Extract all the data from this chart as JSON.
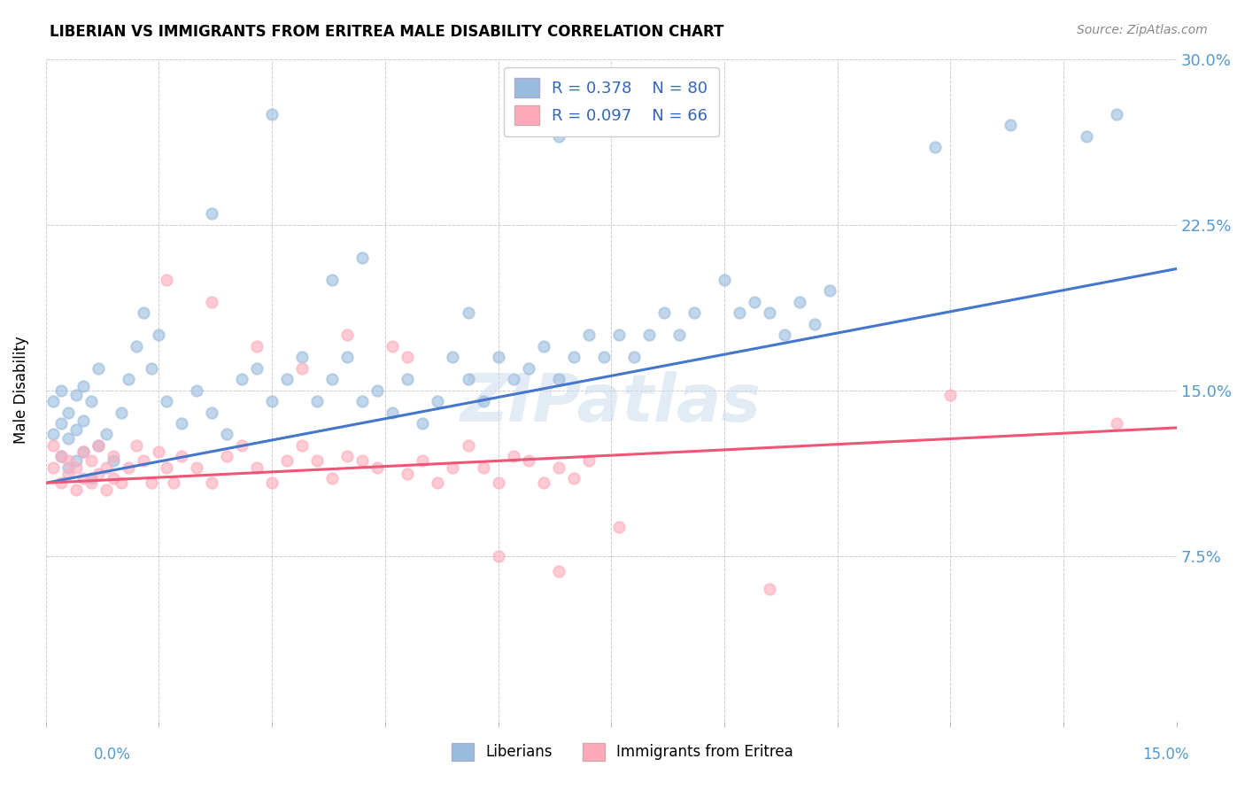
{
  "title": "LIBERIAN VS IMMIGRANTS FROM ERITREA MALE DISABILITY CORRELATION CHART",
  "source": "Source: ZipAtlas.com",
  "ylabel": "Male Disability",
  "xmin": 0.0,
  "xmax": 0.15,
  "ymin": 0.0,
  "ymax": 0.3,
  "yticks": [
    0.075,
    0.15,
    0.225,
    0.3
  ],
  "ytick_labels": [
    "7.5%",
    "15.0%",
    "22.5%",
    "30.0%"
  ],
  "blue_R": 0.378,
  "blue_N": 80,
  "pink_R": 0.097,
  "pink_N": 66,
  "blue_color": "#99BBDD",
  "pink_color": "#FFAABB",
  "blue_line_color": "#4477CC",
  "pink_line_color": "#EE5577",
  "legend_label_blue": "Liberians",
  "legend_label_pink": "Immigrants from Eritrea",
  "watermark": "ZIPatlas",
  "blue_line_x0": 0.0,
  "blue_line_y0": 0.108,
  "blue_line_x1": 0.15,
  "blue_line_y1": 0.205,
  "pink_line_x0": 0.0,
  "pink_line_y0": 0.108,
  "pink_line_x1": 0.15,
  "pink_line_y1": 0.133,
  "background_color": "#FFFFFF",
  "grid_color": "#CCCCCC",
  "blue_scatter_x": [
    0.001,
    0.001,
    0.002,
    0.002,
    0.002,
    0.003,
    0.003,
    0.003,
    0.004,
    0.004,
    0.004,
    0.005,
    0.005,
    0.005,
    0.006,
    0.006,
    0.007,
    0.007,
    0.008,
    0.009,
    0.01,
    0.011,
    0.012,
    0.013,
    0.014,
    0.015,
    0.016,
    0.018,
    0.02,
    0.022,
    0.024,
    0.026,
    0.028,
    0.03,
    0.032,
    0.034,
    0.036,
    0.038,
    0.04,
    0.042,
    0.044,
    0.046,
    0.048,
    0.05,
    0.052,
    0.054,
    0.056,
    0.058,
    0.06,
    0.062,
    0.064,
    0.066,
    0.068,
    0.07,
    0.072,
    0.074,
    0.076,
    0.078,
    0.08,
    0.082,
    0.084,
    0.086,
    0.09,
    0.092,
    0.094,
    0.096,
    0.098,
    0.1,
    0.102,
    0.104,
    0.042,
    0.038,
    0.056,
    0.068,
    0.118,
    0.128,
    0.138,
    0.142,
    0.022,
    0.03
  ],
  "blue_scatter_y": [
    0.13,
    0.145,
    0.12,
    0.135,
    0.15,
    0.115,
    0.128,
    0.14,
    0.118,
    0.132,
    0.148,
    0.122,
    0.136,
    0.152,
    0.11,
    0.145,
    0.125,
    0.16,
    0.13,
    0.118,
    0.14,
    0.155,
    0.17,
    0.185,
    0.16,
    0.175,
    0.145,
    0.135,
    0.15,
    0.14,
    0.13,
    0.155,
    0.16,
    0.145,
    0.155,
    0.165,
    0.145,
    0.155,
    0.165,
    0.145,
    0.15,
    0.14,
    0.155,
    0.135,
    0.145,
    0.165,
    0.155,
    0.145,
    0.165,
    0.155,
    0.16,
    0.17,
    0.155,
    0.165,
    0.175,
    0.165,
    0.175,
    0.165,
    0.175,
    0.185,
    0.175,
    0.185,
    0.2,
    0.185,
    0.19,
    0.185,
    0.175,
    0.19,
    0.18,
    0.195,
    0.21,
    0.2,
    0.185,
    0.265,
    0.26,
    0.27,
    0.265,
    0.275,
    0.23,
    0.275
  ],
  "pink_scatter_x": [
    0.001,
    0.001,
    0.002,
    0.002,
    0.003,
    0.003,
    0.004,
    0.004,
    0.005,
    0.005,
    0.006,
    0.006,
    0.007,
    0.007,
    0.008,
    0.008,
    0.009,
    0.009,
    0.01,
    0.011,
    0.012,
    0.013,
    0.014,
    0.015,
    0.016,
    0.017,
    0.018,
    0.02,
    0.022,
    0.024,
    0.026,
    0.028,
    0.03,
    0.032,
    0.034,
    0.036,
    0.038,
    0.04,
    0.042,
    0.044,
    0.046,
    0.048,
    0.05,
    0.052,
    0.054,
    0.056,
    0.058,
    0.06,
    0.062,
    0.064,
    0.066,
    0.068,
    0.07,
    0.072,
    0.016,
    0.022,
    0.028,
    0.034,
    0.04,
    0.048,
    0.06,
    0.068,
    0.076,
    0.12,
    0.096,
    0.142
  ],
  "pink_scatter_y": [
    0.115,
    0.125,
    0.108,
    0.12,
    0.112,
    0.118,
    0.105,
    0.115,
    0.11,
    0.122,
    0.108,
    0.118,
    0.112,
    0.125,
    0.105,
    0.115,
    0.11,
    0.12,
    0.108,
    0.115,
    0.125,
    0.118,
    0.108,
    0.122,
    0.115,
    0.108,
    0.12,
    0.115,
    0.108,
    0.12,
    0.125,
    0.115,
    0.108,
    0.118,
    0.125,
    0.118,
    0.11,
    0.12,
    0.118,
    0.115,
    0.17,
    0.112,
    0.118,
    0.108,
    0.115,
    0.125,
    0.115,
    0.108,
    0.12,
    0.118,
    0.108,
    0.115,
    0.11,
    0.118,
    0.2,
    0.19,
    0.17,
    0.16,
    0.175,
    0.165,
    0.075,
    0.068,
    0.088,
    0.148,
    0.06,
    0.135
  ]
}
